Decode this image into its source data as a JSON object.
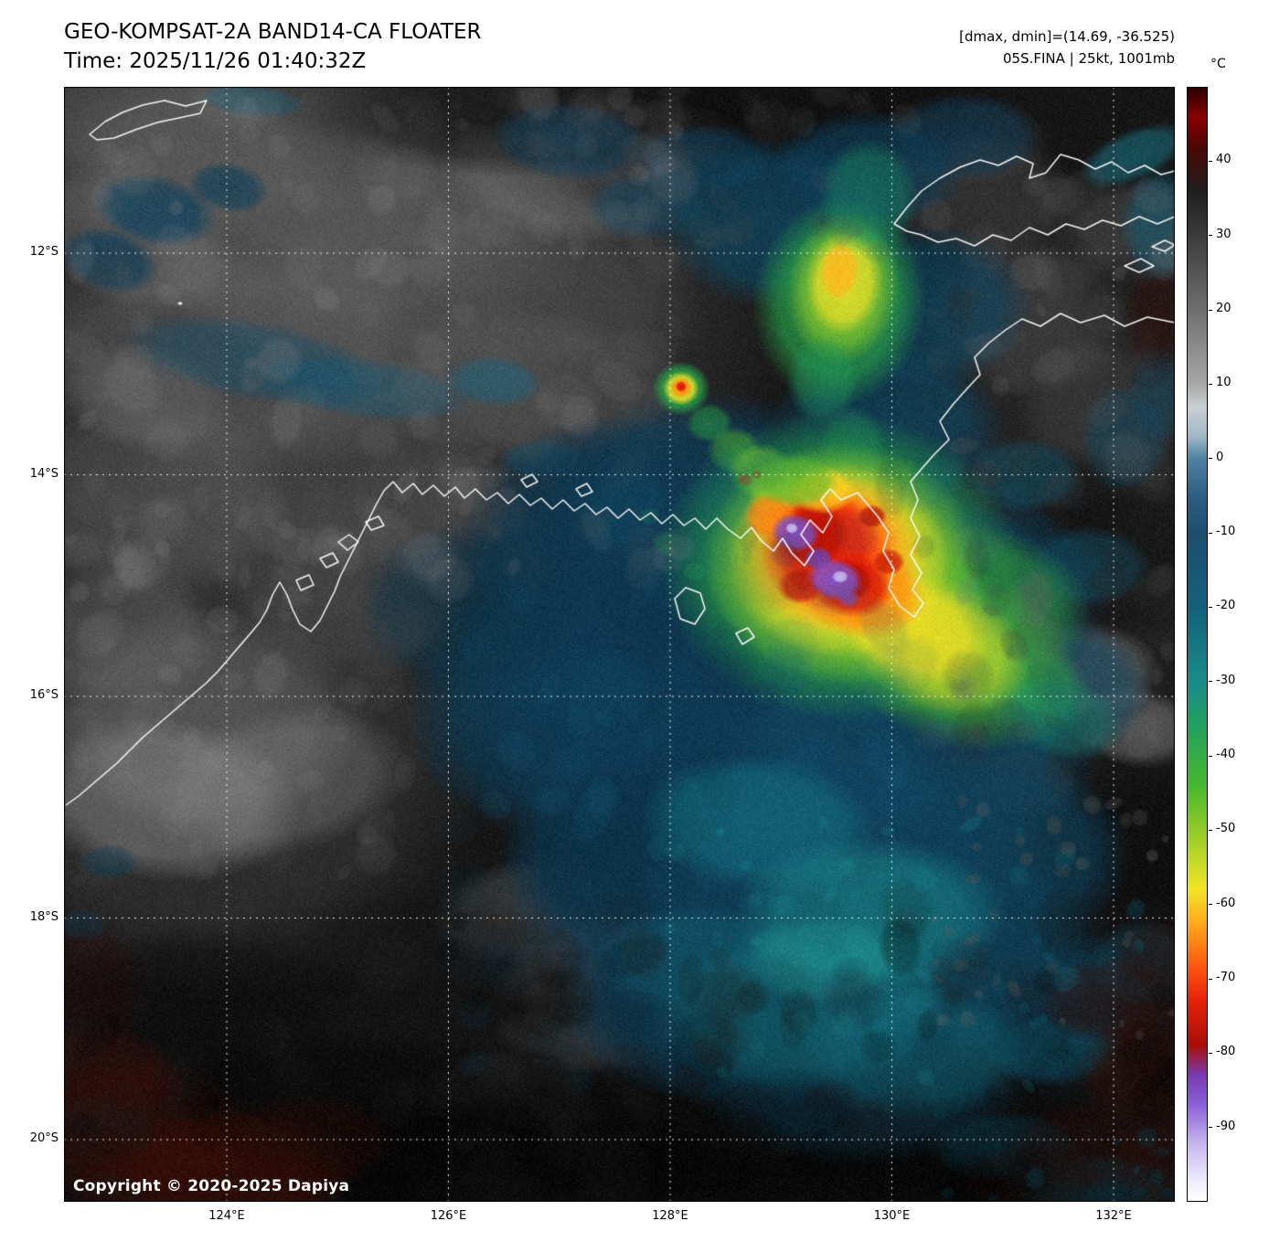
{
  "header": {
    "title": "GEO-KOMPSAT-2A BAND14-CA FLOATER",
    "timestamp": "Time: 2025/11/26 01:40:32Z",
    "dmax_dmin": "[dmax, dmin]=(14.69, -36.525)",
    "storm_info": "05S.FINA | 25kt, 1001mb"
  },
  "map": {
    "copyright": "Copyright © 2020-2025 Dapiya"
  },
  "axes": {
    "lat_ticks": [
      "12°S",
      "14°S",
      "16°S",
      "18°S",
      "20°S"
    ],
    "lon_ticks": [
      "124°E",
      "126°E",
      "128°E",
      "130°E",
      "132°E"
    ]
  },
  "colorbar": {
    "unit": "°C",
    "max": 50,
    "min": -100,
    "tick_values": [
      "40",
      "30",
      "20",
      "10",
      "0",
      "-10",
      "-20",
      "-30",
      "-40",
      "-50",
      "-60",
      "-70",
      "-80",
      "-90"
    ],
    "stops": [
      [
        50,
        "#2b0000"
      ],
      [
        46,
        "#8a0000"
      ],
      [
        42,
        "#4a0803"
      ],
      [
        36,
        "#1f1f1f"
      ],
      [
        30,
        "#3c3c3c"
      ],
      [
        20,
        "#6f6f6f"
      ],
      [
        10,
        "#a8a8a8"
      ],
      [
        7,
        "#c9cfd2"
      ],
      [
        3,
        "#9fb9c6"
      ],
      [
        0,
        "#4f81a1"
      ],
      [
        -5,
        "#2b5f83"
      ],
      [
        -10,
        "#1c4e6e"
      ],
      [
        -20,
        "#156079"
      ],
      [
        -30,
        "#1a8b89"
      ],
      [
        -36,
        "#22a060"
      ],
      [
        -44,
        "#47b72e"
      ],
      [
        -52,
        "#a9d128"
      ],
      [
        -58,
        "#f2e426"
      ],
      [
        -63,
        "#ffa31a"
      ],
      [
        -68,
        "#ff5c10"
      ],
      [
        -73,
        "#e8210a"
      ],
      [
        -79,
        "#a80f06"
      ],
      [
        -83,
        "#7a3aae"
      ],
      [
        -87,
        "#8a5fd8"
      ],
      [
        -92,
        "#c3b2ec"
      ],
      [
        -97,
        "#ece8fb"
      ],
      [
        -100,
        "#ffffff"
      ]
    ]
  }
}
